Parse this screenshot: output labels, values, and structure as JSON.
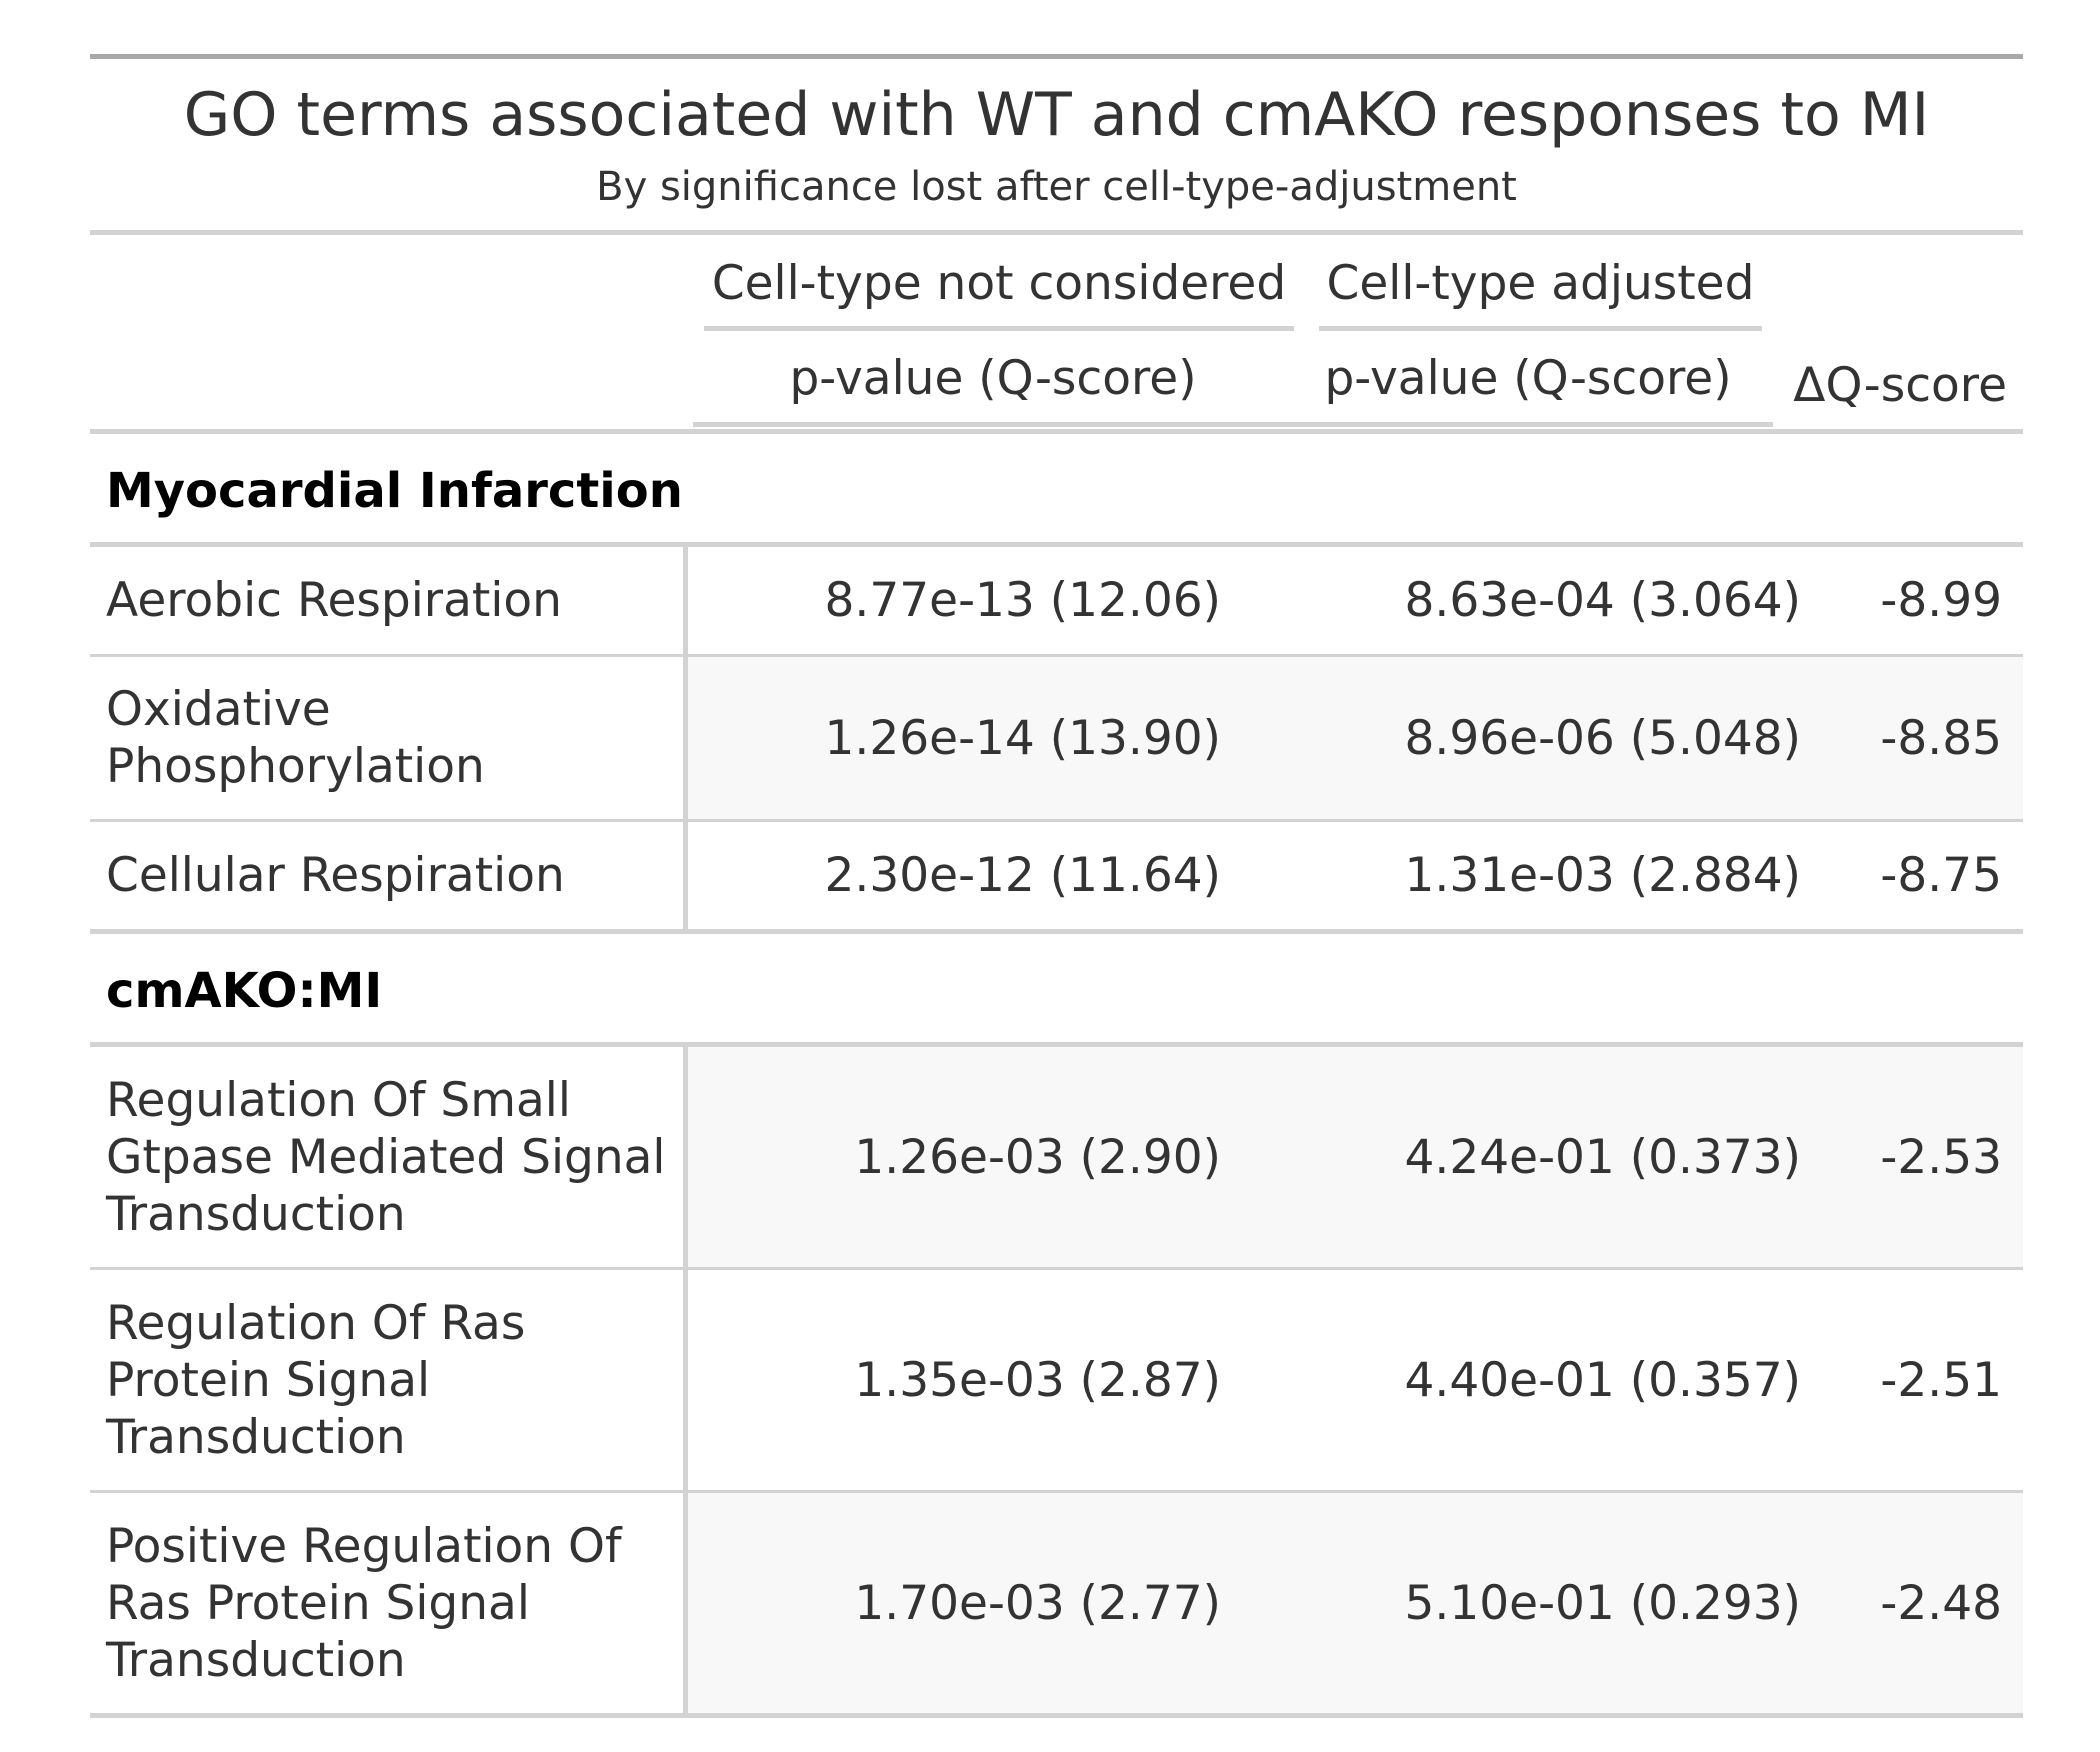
{
  "title": "GO terms associated with WT and cmAKO responses to MI",
  "subtitle": "By significance lost after cell-type-adjustment",
  "columns": {
    "spanner_unadjusted": "Cell-type not considered",
    "spanner_adjusted": "Cell-type adjusted",
    "unadjusted_label": "p-value (Q-score)",
    "adjusted_label": "p-value (Q-score)",
    "delta_label": "ΔQ-score"
  },
  "groups": [
    {
      "label": "Myocardial Infarction",
      "rows": [
        {
          "term": "Aerobic Respiration",
          "unadjusted": "8.77e-13 (12.06)",
          "adjusted": "8.63e-04 (3.064)",
          "delta": "-8.99"
        },
        {
          "term": "Oxidative Phosphorylation",
          "unadjusted": "1.26e-14 (13.90)",
          "adjusted": "8.96e-06 (5.048)",
          "delta": "-8.85"
        },
        {
          "term": "Cellular Respiration",
          "unadjusted": "2.30e-12 (11.64)",
          "adjusted": "1.31e-03 (2.884)",
          "delta": "-8.75"
        }
      ]
    },
    {
      "label": "cmAKO:MI",
      "rows": [
        {
          "term": "Regulation Of Small Gtpase Mediated Signal Transduction",
          "unadjusted": "1.26e-03 (2.90)",
          "adjusted": "4.24e-01 (0.373)",
          "delta": "-2.53"
        },
        {
          "term": "Regulation Of Ras Protein Signal Transduction",
          "unadjusted": "1.35e-03 (2.87)",
          "adjusted": "4.40e-01 (0.357)",
          "delta": "-2.51"
        },
        {
          "term": "Positive Regulation Of Ras Protein Signal Transduction",
          "unadjusted": "1.70e-03 (2.77)",
          "adjusted": "5.10e-01 (0.293)",
          "delta": "-2.48"
        }
      ]
    }
  ]
}
